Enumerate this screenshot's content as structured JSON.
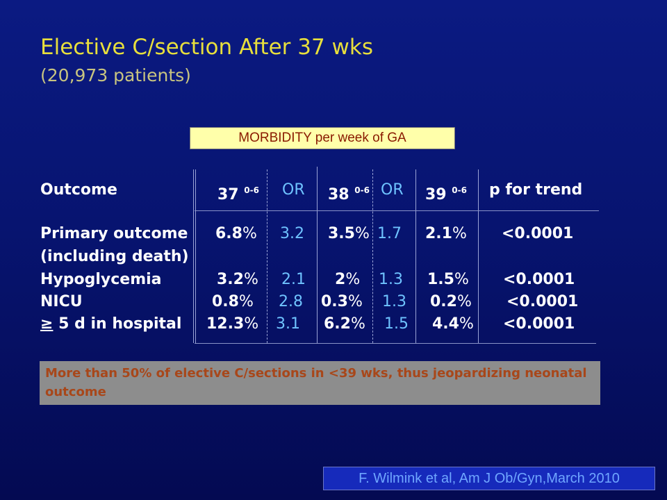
{
  "title": "Elective C/section After 37 wks",
  "subtitle": "(20,973 patients)",
  "table_caption": "MORBIDITY per week of GA",
  "headers": {
    "outcome": "Outcome",
    "w37": "37",
    "w37_sup": "0-6",
    "or1": "OR",
    "w38": "38",
    "w38_sup": "0-6",
    "or2": "OR",
    "w39": "39",
    "w39_sup": "0-6",
    "p": "p for trend"
  },
  "rows": [
    {
      "label": "Primary outcome",
      "w37": "6.8",
      "or1": "3.2",
      "w38": "3.5",
      "or2": "1.7",
      "w39": "2.1",
      "p": "<0.0001"
    },
    {
      "label": "(including death)"
    },
    {
      "label": "Hypoglycemia",
      "w37": "3.2",
      "or1": "2.1",
      "w38": "2",
      "or2": "1.3",
      "w39": "1.5",
      "p": "<0.0001"
    },
    {
      "label": "NICU",
      "w37": "0.8",
      "or1": "2.8",
      "w38": "0.3",
      "or2": "1.3",
      "w39": "0.2",
      "p": "<0.0001"
    },
    {
      "label_ge": "≥",
      "label": " 5 d in hospital",
      "w37": "12.3",
      "or1": "3.1",
      "w38": "6.2",
      "or2": "1.5",
      "w39": "4.4",
      "p": "<0.0001"
    }
  ],
  "percent_sign": "%",
  "note": "More than 50% of elective C/sections in <39 wks, thus jeopardizing neonatal  outcome",
  "citation": "F. Wilmink et al, Am J Ob/Gyn,March 2010",
  "colors": {
    "background": "#071470",
    "title": "#e8df3c",
    "or_values": "#6fc3ff",
    "caption_box": "#ffffaa",
    "note_box": "#8d8d8d",
    "note_text": "#a8471a"
  }
}
